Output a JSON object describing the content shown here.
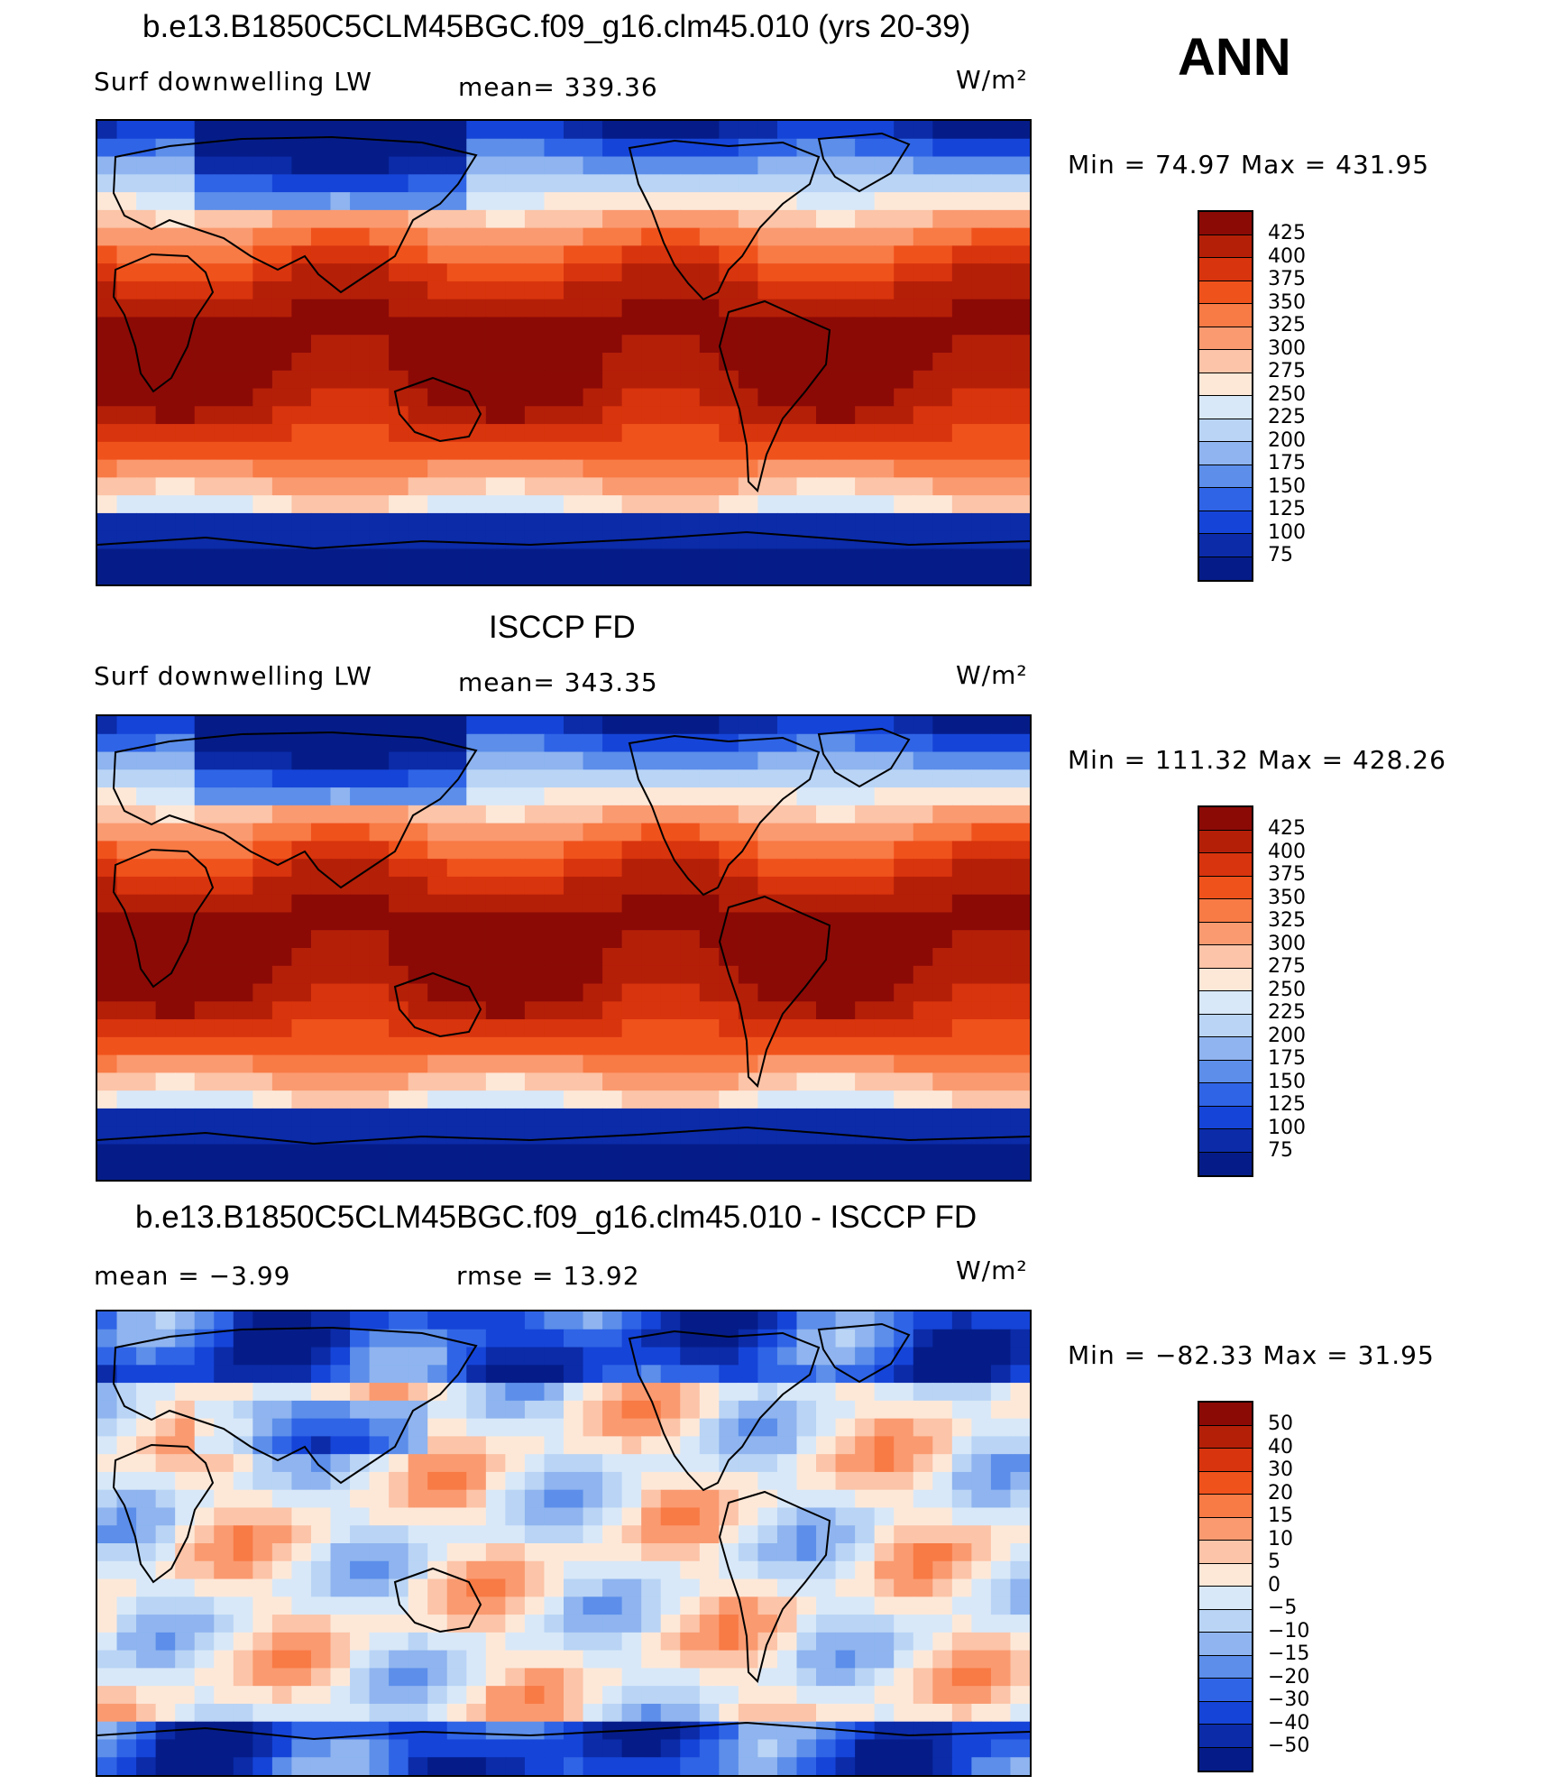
{
  "season": "ANN",
  "panels": [
    {
      "title": "b.e13.B1850C5CLM45BGC.f09_g16.clm45.010 (yrs 20-39)",
      "left_label": "Surf downwelling LW",
      "center_label": "mean=  339.36",
      "units": "W/m²",
      "minmax": "Min =   74.97 Max = 431.95",
      "colorbar": {
        "levels": [
          "425",
          "400",
          "375",
          "350",
          "325",
          "300",
          "275",
          "250",
          "225",
          "200",
          "175",
          "150",
          "125",
          "100",
          "75"
        ],
        "colors": [
          "#8b0a06",
          "#b41f08",
          "#d8340d",
          "#f0521c",
          "#f87a45",
          "#fa9a70",
          "#fcc4a8",
          "#fde8d8",
          "#d8e8f8",
          "#b9d4f5",
          "#8fb4ef",
          "#5c8eea",
          "#2f64e6",
          "#1544d8",
          "#0b2ba8",
          "#051c88"
        ]
      },
      "field": "mean"
    },
    {
      "title": "ISCCP FD",
      "left_label": "Surf downwelling LW",
      "center_label": "mean=  343.35",
      "units": "W/m²",
      "minmax": "Min = 111.32 Max = 428.26",
      "colorbar": {
        "levels": [
          "425",
          "400",
          "375",
          "350",
          "325",
          "300",
          "275",
          "250",
          "225",
          "200",
          "175",
          "150",
          "125",
          "100",
          "75"
        ],
        "colors": [
          "#8b0a06",
          "#b41f08",
          "#d8340d",
          "#f0521c",
          "#f87a45",
          "#fa9a70",
          "#fcc4a8",
          "#fde8d8",
          "#d8e8f8",
          "#b9d4f5",
          "#8fb4ef",
          "#5c8eea",
          "#2f64e6",
          "#1544d8",
          "#0b2ba8",
          "#051c88"
        ]
      },
      "field": "mean"
    },
    {
      "title": "b.e13.B1850C5CLM45BGC.f09_g16.clm45.010 - ISCCP FD",
      "left_label": "mean =    −3.99",
      "center_label": "rmse =    13.92",
      "units": "W/m²",
      "minmax": "Min = −82.33 Max =   31.95",
      "colorbar": {
        "levels": [
          "50",
          "40",
          "30",
          "20",
          "15",
          "10",
          "5",
          "0",
          "−5",
          "−10",
          "−15",
          "−20",
          "−30",
          "−40",
          "−50"
        ],
        "colors": [
          "#8b0a06",
          "#b41f08",
          "#d8340d",
          "#f0521c",
          "#f87a45",
          "#fa9a70",
          "#fcc4a8",
          "#fde8d8",
          "#d8e8f8",
          "#b9d4f5",
          "#8fb4ef",
          "#5c8eea",
          "#2f64e6",
          "#1544d8",
          "#0b2ba8",
          "#051c88"
        ]
      },
      "field": "diff"
    }
  ]
}
